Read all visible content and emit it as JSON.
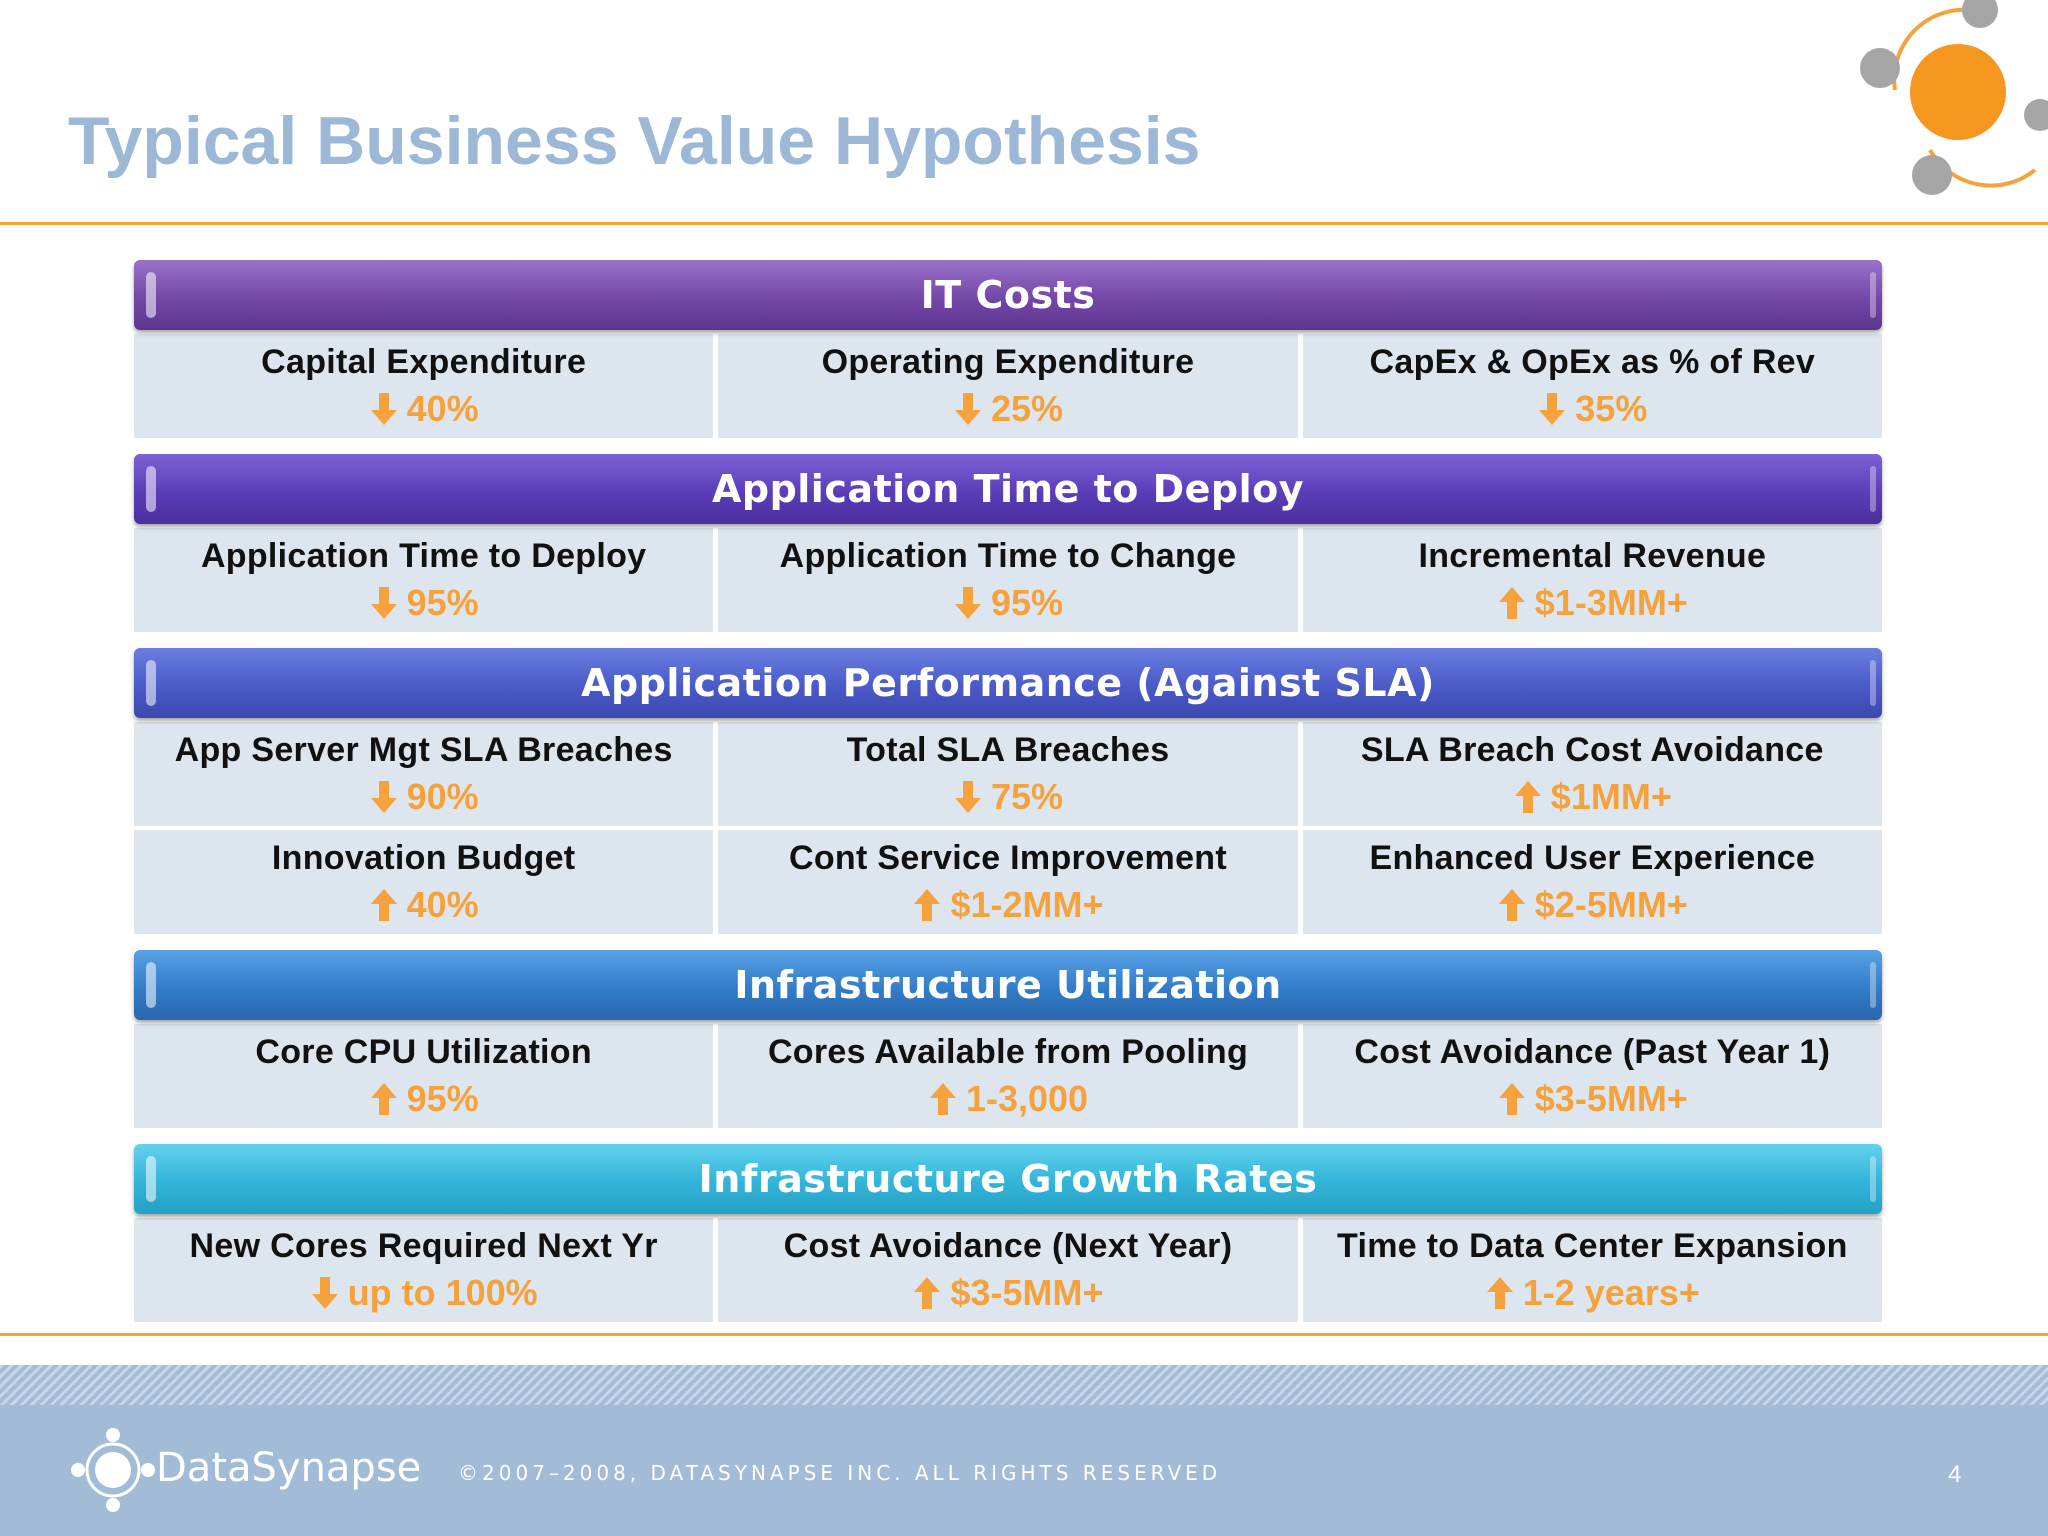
{
  "slide": {
    "title": "Typical Business Value Hypothesis",
    "accent_color": "#f5a23c",
    "title_color": "#9cb8d6"
  },
  "sections": [
    {
      "title": "IT Costs",
      "rows": [
        [
          {
            "label": "Capital Expenditure",
            "direction": "down",
            "value": "40%"
          },
          {
            "label": "Operating Expenditure",
            "direction": "down",
            "value": "25%"
          },
          {
            "label": "CapEx & OpEx as % of Rev",
            "direction": "down",
            "value": "35%"
          }
        ]
      ]
    },
    {
      "title": "Application Time to Deploy",
      "rows": [
        [
          {
            "label": "Application Time to Deploy",
            "direction": "down",
            "value": "95%"
          },
          {
            "label": "Application Time to Change",
            "direction": "down",
            "value": "95%"
          },
          {
            "label": "Incremental Revenue",
            "direction": "up",
            "value": "$1-3MM+"
          }
        ]
      ]
    },
    {
      "title": "Application Performance (Against SLA)",
      "rows": [
        [
          {
            "label": "App Server Mgt SLA Breaches",
            "direction": "down",
            "value": "90%"
          },
          {
            "label": "Total SLA Breaches",
            "direction": "down",
            "value": "75%"
          },
          {
            "label": "SLA Breach Cost Avoidance",
            "direction": "up",
            "value": "$1MM+"
          }
        ],
        [
          {
            "label": "Innovation Budget",
            "direction": "up",
            "value": "40%"
          },
          {
            "label": "Cont Service Improvement",
            "direction": "up",
            "value": "$1-2MM+"
          },
          {
            "label": "Enhanced User Experience",
            "direction": "up",
            "value": "$2-5MM+"
          }
        ]
      ]
    },
    {
      "title": "Infrastructure Utilization",
      "rows": [
        [
          {
            "label": "Core CPU Utilization",
            "direction": "up",
            "value": "95%"
          },
          {
            "label": "Cores Available from Pooling",
            "direction": "up",
            "value": "1-3,000"
          },
          {
            "label": "Cost Avoidance (Past Year 1)",
            "direction": "up",
            "value": "$3-5MM+"
          }
        ]
      ]
    },
    {
      "title": "Infrastructure Growth Rates",
      "rows": [
        [
          {
            "label": "New Cores Required Next Yr",
            "direction": "down",
            "value": "up to 100%"
          },
          {
            "label": "Cost Avoidance (Next Year)",
            "direction": "up",
            "value": "$3-5MM+"
          },
          {
            "label": "Time to Data Center Expansion",
            "direction": "up",
            "value": "1-2 years+"
          }
        ]
      ]
    }
  ],
  "footer": {
    "brand": "DataSynapse",
    "copyright": "©2007–2008, DATASYNAPSE INC. ALL RIGHTS RESERVED",
    "page_number": "4"
  }
}
